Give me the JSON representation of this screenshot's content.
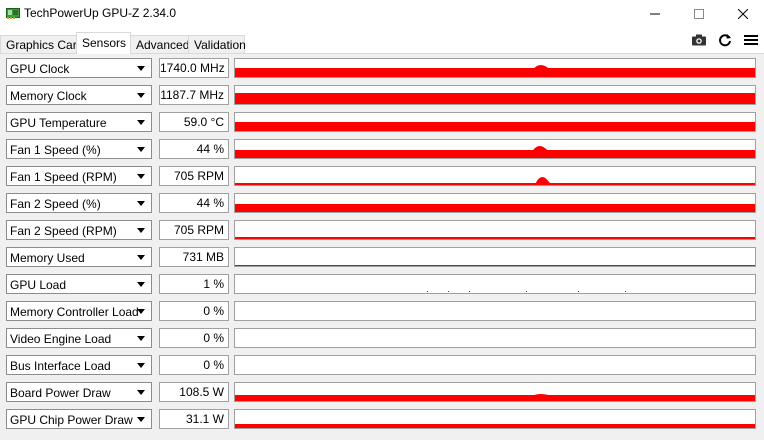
{
  "window": {
    "title": "TechPowerUp GPU-Z 2.34.0",
    "minimize_icon": "minimize-icon",
    "maximize_icon": "maximize-icon",
    "close_icon": "close-icon"
  },
  "tabs": [
    {
      "label": "Graphics Card",
      "active": false
    },
    {
      "label": "Sensors",
      "active": true
    },
    {
      "label": "Advanced",
      "active": false
    },
    {
      "label": "Validation",
      "active": false
    }
  ],
  "toolbar": {
    "icons": [
      "camera-icon",
      "refresh-icon",
      "menu-icon"
    ]
  },
  "colors": {
    "graph": "#ff0000",
    "graph_sparse": "#ff0000"
  },
  "sensors": [
    {
      "name": "GPU Clock",
      "value": "1740.0 MHz",
      "level": 0.52,
      "spike": {
        "at": 0.587,
        "height": 0.15
      }
    },
    {
      "name": "Memory Clock",
      "value": "1187.7 MHz",
      "level": 0.62,
      "spike": null
    },
    {
      "name": "GPU Temperature",
      "value": "59.0 °C",
      "level": 0.48,
      "spike": null
    },
    {
      "name": "Fan 1 Speed (%)",
      "value": "44 %",
      "level": 0.44,
      "spike": {
        "at": 0.585,
        "height": 0.2
      }
    },
    {
      "name": "Fan 1 Speed (RPM)",
      "value": "705 RPM",
      "level": 0.1,
      "spike": {
        "at": 0.59,
        "height": 0.35
      }
    },
    {
      "name": "Fan 2 Speed (%)",
      "value": "44 %",
      "level": 0.44,
      "spike": null
    },
    {
      "name": "Fan 2 Speed (RPM)",
      "value": "705 RPM",
      "level": 0.1,
      "spike": null
    },
    {
      "name": "Memory Used",
      "value": "731 MB",
      "level": 0.06,
      "spike": null
    },
    {
      "name": "GPU Load",
      "value": "1 %",
      "level": 0,
      "sparse": true,
      "spike": null
    },
    {
      "name": "Memory Controller Load",
      "value": "0 %",
      "level": 0,
      "spike": null
    },
    {
      "name": "Video Engine Load",
      "value": "0 %",
      "level": 0,
      "spike": null
    },
    {
      "name": "Bus Interface Load",
      "value": "0 %",
      "level": 0,
      "spike": null
    },
    {
      "name": "Board Power Draw",
      "value": "108.5 W",
      "level": 0.34,
      "spike": {
        "at": 0.587,
        "height": 0.05
      }
    },
    {
      "name": "GPU Chip Power Draw",
      "value": "31.1 W",
      "level": 0.24,
      "spike": null
    }
  ]
}
